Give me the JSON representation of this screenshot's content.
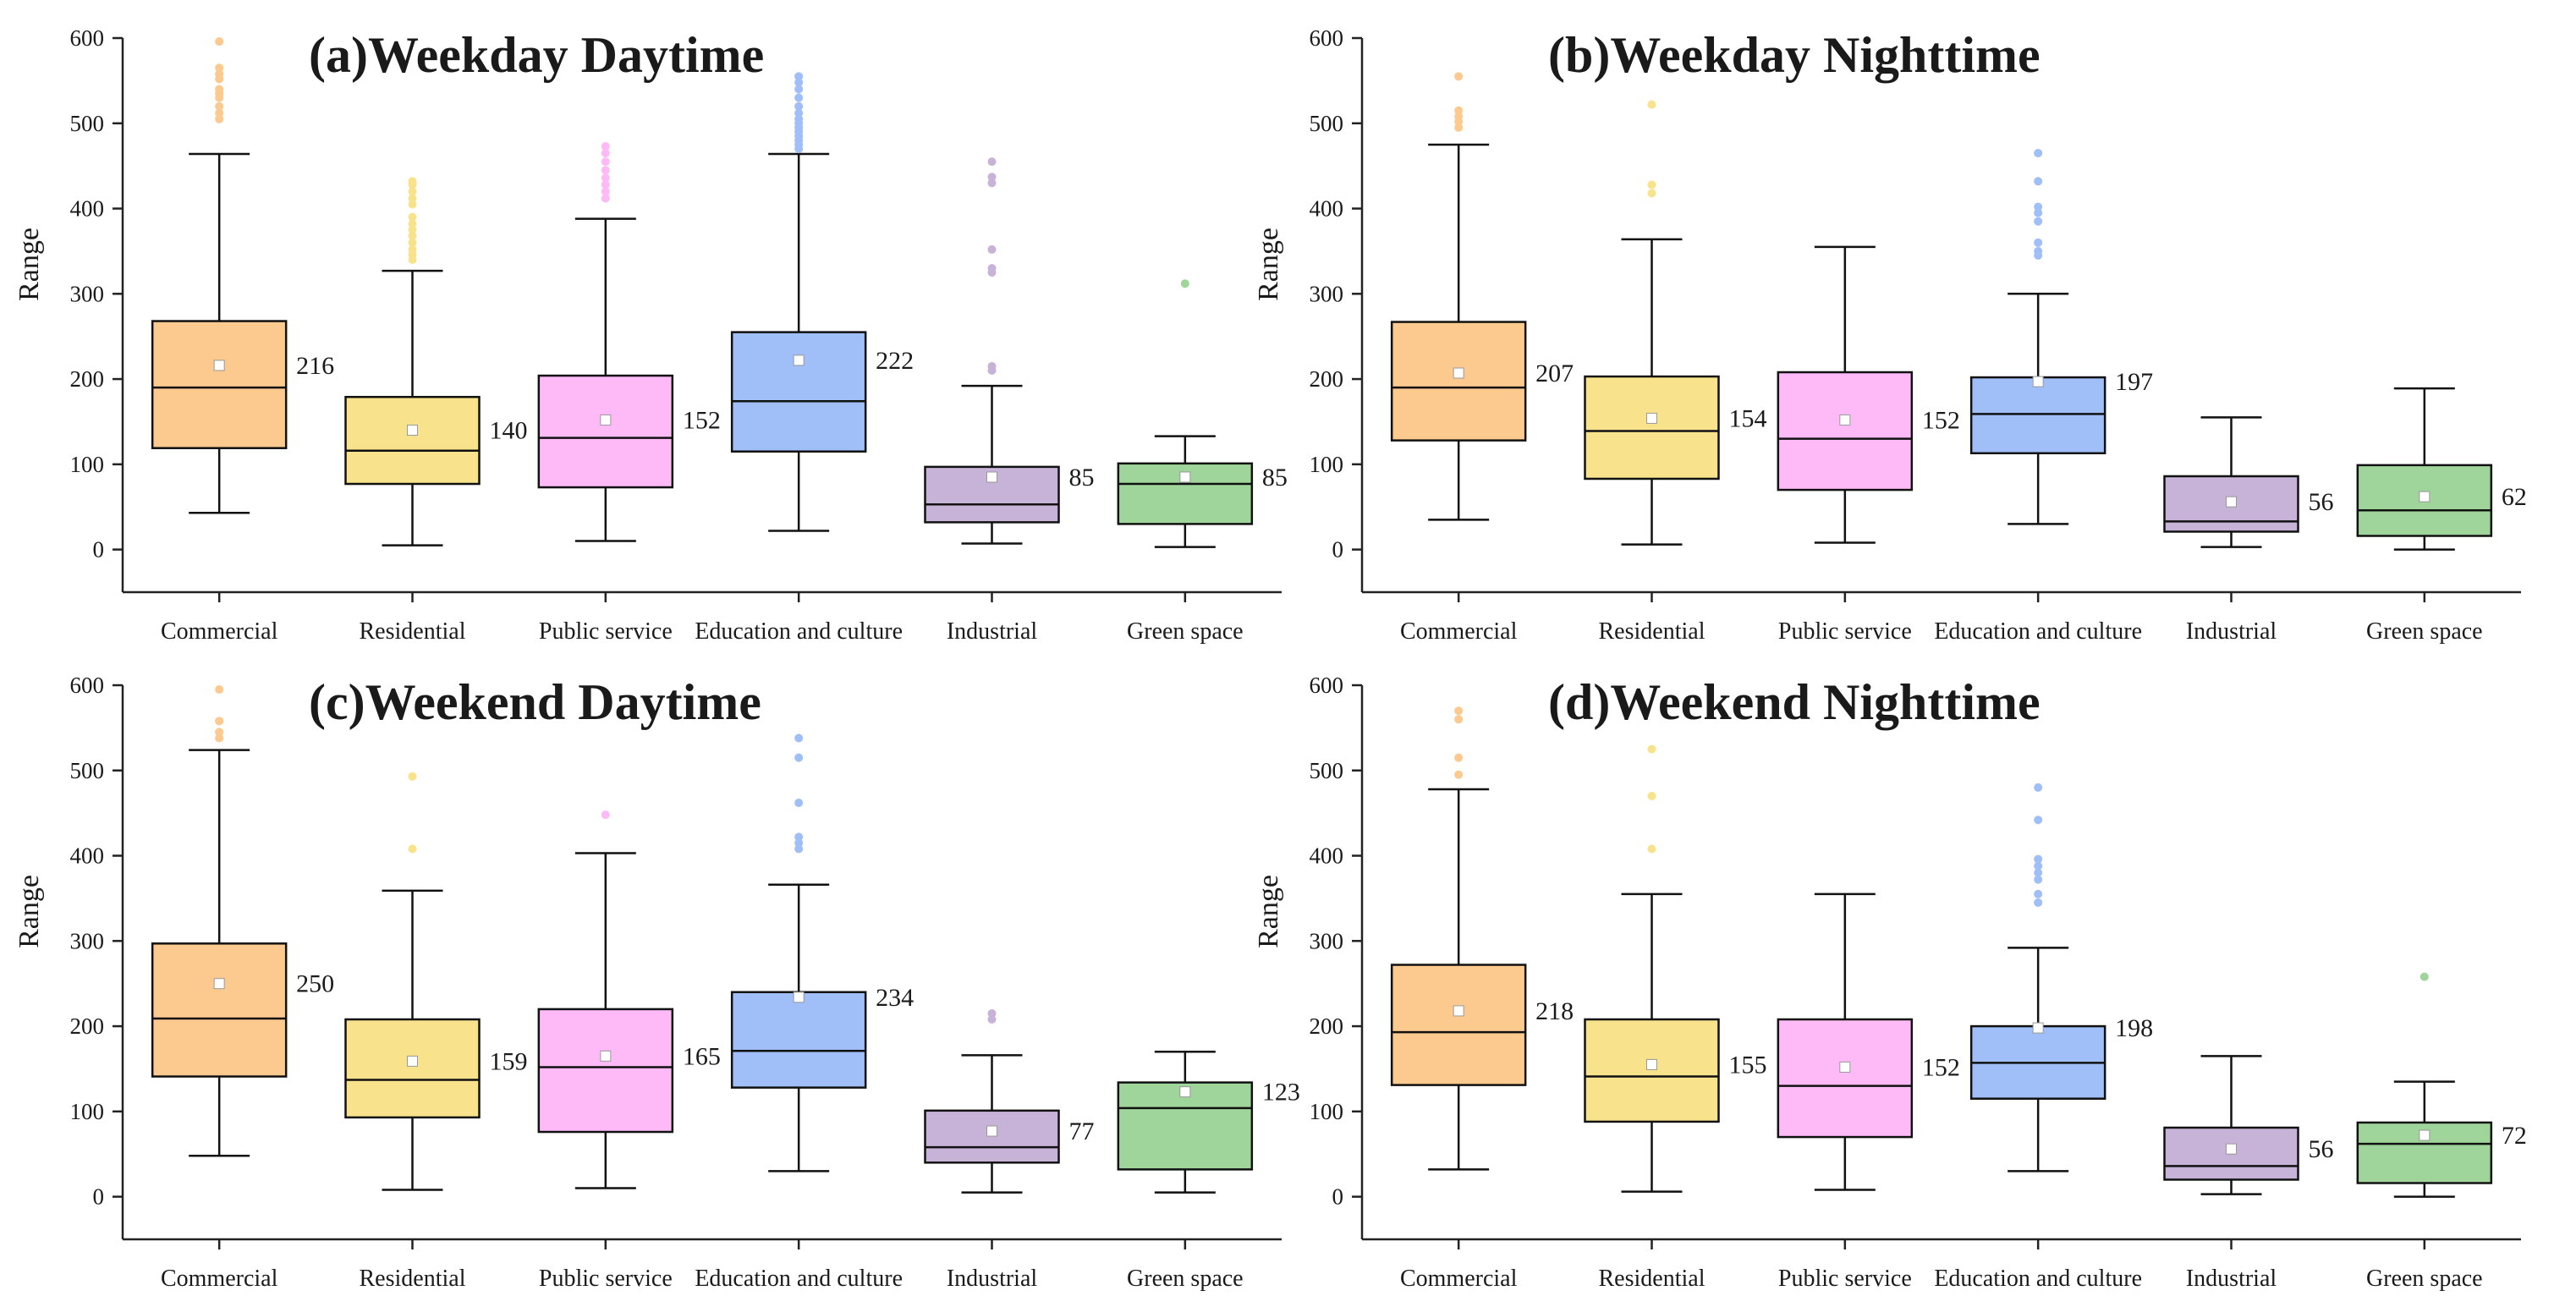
{
  "chart_data": [
    {
      "id": "a",
      "type": "box",
      "title": "(a)Weekday Daytime",
      "ylabel": "Range",
      "ylim": [
        -50,
        600
      ],
      "yticks": [
        0,
        100,
        200,
        300,
        400,
        500,
        600
      ],
      "categories": [
        "Commercial",
        "Residential",
        "Public service",
        "Education and culture",
        "Industrial",
        "Green space"
      ],
      "colors": [
        "#fcc98f",
        "#f8e38c",
        "#fdbaf7",
        "#a0bef7",
        "#c7b2d8",
        "#9fd59a"
      ],
      "boxes": [
        {
          "whisker_low": 43,
          "q1": 119,
          "median": 190,
          "q3": 268,
          "whisker_high": 464,
          "mean": 216,
          "outliers": [
            505,
            512,
            520,
            530,
            535,
            540,
            552,
            558,
            565,
            596
          ]
        },
        {
          "whisker_low": 5,
          "q1": 77,
          "median": 116,
          "q3": 179,
          "whisker_high": 327,
          "mean": 140,
          "outliers": [
            340,
            346,
            352,
            360,
            368,
            375,
            382,
            390,
            405,
            412,
            420,
            428,
            432
          ]
        },
        {
          "whisker_low": 10,
          "q1": 73,
          "median": 131,
          "q3": 204,
          "whisker_high": 388,
          "mean": 152,
          "outliers": [
            412,
            420,
            428,
            436,
            445,
            455,
            465,
            473
          ]
        },
        {
          "whisker_low": 22,
          "q1": 115,
          "median": 174,
          "q3": 255,
          "whisker_high": 464,
          "mean": 222,
          "outliers": [
            470,
            475,
            480,
            485,
            490,
            495,
            500,
            505,
            512,
            520,
            530,
            540,
            548,
            555
          ]
        },
        {
          "whisker_low": 7,
          "q1": 32,
          "median": 53,
          "q3": 97,
          "whisker_high": 192,
          "mean": 85,
          "outliers": [
            210,
            215,
            325,
            330,
            352,
            430,
            437,
            455
          ]
        },
        {
          "whisker_low": 3,
          "q1": 30,
          "median": 77,
          "q3": 101,
          "whisker_high": 133,
          "mean": 85,
          "outliers": [
            312
          ]
        }
      ]
    },
    {
      "id": "b",
      "type": "box",
      "title": "(b)Weekday Nighttime",
      "ylabel": "Range",
      "ylim": [
        -50,
        600
      ],
      "yticks": [
        0,
        100,
        200,
        300,
        400,
        500,
        600
      ],
      "categories": [
        "Commercial",
        "Residential",
        "Public service",
        "Education and culture",
        "Industrial",
        "Green space"
      ],
      "colors": [
        "#fcc98f",
        "#f8e38c",
        "#fdbaf7",
        "#a0bef7",
        "#c7b2d8",
        "#9fd59a"
      ],
      "boxes": [
        {
          "whisker_low": 35,
          "q1": 128,
          "median": 190,
          "q3": 267,
          "whisker_high": 475,
          "mean": 207,
          "outliers": [
            495,
            502,
            508,
            515,
            555
          ]
        },
        {
          "whisker_low": 6,
          "q1": 83,
          "median": 139,
          "q3": 203,
          "whisker_high": 364,
          "mean": 154,
          "outliers": [
            418,
            428,
            522
          ]
        },
        {
          "whisker_low": 8,
          "q1": 70,
          "median": 130,
          "q3": 208,
          "whisker_high": 355,
          "mean": 152,
          "outliers": []
        },
        {
          "whisker_low": 30,
          "q1": 113,
          "median": 159,
          "q3": 202,
          "whisker_high": 300,
          "mean": 197,
          "outliers": [
            345,
            350,
            360,
            385,
            395,
            402,
            432,
            465
          ]
        },
        {
          "whisker_low": 3,
          "q1": 21,
          "median": 33,
          "q3": 86,
          "whisker_high": 155,
          "mean": 56,
          "outliers": []
        },
        {
          "whisker_low": 0,
          "q1": 16,
          "median": 46,
          "q3": 99,
          "whisker_high": 189,
          "mean": 62,
          "outliers": []
        }
      ]
    },
    {
      "id": "c",
      "type": "box",
      "title": "(c)Weekend Daytime",
      "ylabel": "Range",
      "ylim": [
        -50,
        600
      ],
      "yticks": [
        0,
        100,
        200,
        300,
        400,
        500,
        600
      ],
      "categories": [
        "Commercial",
        "Residential",
        "Public service",
        "Education and culture",
        "Industrial",
        "Green space"
      ],
      "colors": [
        "#fcc98f",
        "#f8e38c",
        "#fdbaf7",
        "#a0bef7",
        "#c7b2d8",
        "#9fd59a"
      ],
      "boxes": [
        {
          "whisker_low": 48,
          "q1": 141,
          "median": 209,
          "q3": 297,
          "whisker_high": 524,
          "mean": 250,
          "outliers": [
            538,
            545,
            558,
            595
          ]
        },
        {
          "whisker_low": 8,
          "q1": 93,
          "median": 137,
          "q3": 208,
          "whisker_high": 359,
          "mean": 159,
          "outliers": [
            408,
            493
          ]
        },
        {
          "whisker_low": 10,
          "q1": 76,
          "median": 152,
          "q3": 220,
          "whisker_high": 403,
          "mean": 165,
          "outliers": [
            448
          ]
        },
        {
          "whisker_low": 30,
          "q1": 128,
          "median": 171,
          "q3": 240,
          "whisker_high": 366,
          "mean": 234,
          "outliers": [
            408,
            415,
            422,
            462,
            515,
            538
          ]
        },
        {
          "whisker_low": 5,
          "q1": 40,
          "median": 58,
          "q3": 101,
          "whisker_high": 166,
          "mean": 77,
          "outliers": [
            208,
            215
          ]
        },
        {
          "whisker_low": 5,
          "q1": 32,
          "median": 104,
          "q3": 134,
          "whisker_high": 170,
          "mean": 123,
          "outliers": []
        }
      ]
    },
    {
      "id": "d",
      "type": "box",
      "title": "(d)Weekend Nighttime",
      "ylabel": "Range",
      "ylim": [
        -50,
        600
      ],
      "yticks": [
        0,
        100,
        200,
        300,
        400,
        500,
        600
      ],
      "categories": [
        "Commercial",
        "Residential",
        "Public service",
        "Education and culture",
        "Industrial",
        "Green space"
      ],
      "colors": [
        "#fcc98f",
        "#f8e38c",
        "#fdbaf7",
        "#a0bef7",
        "#c7b2d8",
        "#9fd59a"
      ],
      "boxes": [
        {
          "whisker_low": 32,
          "q1": 131,
          "median": 193,
          "q3": 272,
          "whisker_high": 478,
          "mean": 218,
          "outliers": [
            495,
            515,
            560,
            570
          ]
        },
        {
          "whisker_low": 6,
          "q1": 88,
          "median": 141,
          "q3": 208,
          "whisker_high": 355,
          "mean": 155,
          "outliers": [
            408,
            470,
            525
          ]
        },
        {
          "whisker_low": 8,
          "q1": 70,
          "median": 130,
          "q3": 208,
          "whisker_high": 355,
          "mean": 152,
          "outliers": []
        },
        {
          "whisker_low": 30,
          "q1": 115,
          "median": 157,
          "q3": 200,
          "whisker_high": 292,
          "mean": 198,
          "outliers": [
            345,
            355,
            372,
            380,
            388,
            396,
            442,
            480
          ]
        },
        {
          "whisker_low": 3,
          "q1": 20,
          "median": 36,
          "q3": 81,
          "whisker_high": 165,
          "mean": 56,
          "outliers": []
        },
        {
          "whisker_low": 0,
          "q1": 16,
          "median": 62,
          "q3": 87,
          "whisker_high": 135,
          "mean": 72,
          "outliers": [
            258
          ]
        }
      ]
    }
  ]
}
